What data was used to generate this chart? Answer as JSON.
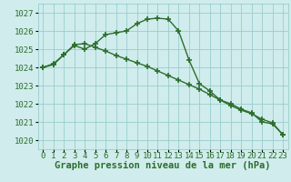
{
  "x": [
    0,
    1,
    2,
    3,
    4,
    5,
    6,
    7,
    8,
    9,
    10,
    11,
    12,
    13,
    14,
    15,
    16,
    17,
    18,
    19,
    20,
    21,
    22,
    23
  ],
  "series1": [
    1024.0,
    1024.2,
    1024.7,
    1025.2,
    1025.0,
    1025.3,
    1025.8,
    1025.9,
    1026.0,
    1026.4,
    1026.65,
    1026.7,
    1026.65,
    1026.0,
    1024.4,
    1023.1,
    1022.7,
    1022.2,
    1022.0,
    1021.7,
    1021.5,
    1021.0,
    1020.9,
    1020.3
  ],
  "series2": [
    1024.0,
    1024.15,
    1024.7,
    1025.25,
    1025.3,
    1025.1,
    1024.9,
    1024.65,
    1024.45,
    1024.25,
    1024.05,
    1023.8,
    1023.55,
    1023.3,
    1023.05,
    1022.8,
    1022.5,
    1022.2,
    1021.9,
    1021.65,
    1021.45,
    1021.15,
    1020.95,
    1020.3
  ],
  "ylim": [
    1019.5,
    1027.5
  ],
  "yticks": [
    1020,
    1021,
    1022,
    1023,
    1024,
    1025,
    1026,
    1027
  ],
  "xtick_labels": [
    "0",
    "1",
    "2",
    "3",
    "4",
    "5",
    "6",
    "7",
    "8",
    "9",
    "1011",
    "1213",
    "1415",
    "1617",
    "1819",
    "2021",
    "2223"
  ],
  "xlabel": "Graphe pression niveau de la mer (hPa)",
  "line_color": "#2d6e2d",
  "bg_color": "#d0ecec",
  "grid_color": "#8fc8c8",
  "marker": "+",
  "marker_size": 4,
  "marker_ew": 1.2,
  "line_width": 1.0,
  "xlabel_fontsize": 7.5,
  "tick_fontsize": 6.5
}
